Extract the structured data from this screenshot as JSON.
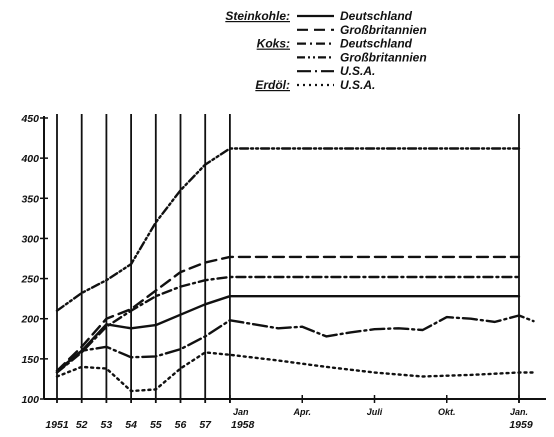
{
  "chart_data": {
    "type": "line",
    "title": "",
    "xlabel": "",
    "ylabel": "",
    "ylim": [
      100,
      450
    ],
    "yticks": [
      100,
      150,
      200,
      250,
      300,
      350,
      400,
      450
    ],
    "ytick_labels": [
      "100",
      "150",
      "200",
      "250",
      "300",
      "350",
      "400",
      "450"
    ],
    "x_label_groups": [
      {
        "labels": [
          "1951",
          "52",
          "53",
          "54",
          "55",
          "56",
          "57"
        ]
      },
      {
        "labels": [
          "Jan",
          "Apr.",
          "Juli",
          "Okt.",
          "Jan."
        ],
        "sublabels": [
          "1958",
          "",
          "",
          "",
          "1959"
        ]
      }
    ],
    "legend": {
      "groups": [
        {
          "label": "Steinkohle:",
          "entries": [
            {
              "name": "Deutschland",
              "series": "s_de"
            },
            {
              "name": "Großbritannien",
              "series": "s_gb"
            }
          ]
        },
        {
          "label": "Koks:",
          "entries": [
            {
              "name": "Deutschland",
              "series": "k_de"
            },
            {
              "name": "Großbritannien",
              "series": "k_gb"
            },
            {
              "name": "U.S.A.",
              "series": "k_usa"
            }
          ]
        },
        {
          "label": "Erdöl:",
          "entries": [
            {
              "name": "U.S.A.",
              "series": "e_usa"
            }
          ]
        }
      ]
    },
    "series": [
      {
        "id": "s_de",
        "name": "Steinkohle: Deutschland",
        "dash": "solid",
        "annual": [
          [
            1951,
            135
          ],
          [
            1952,
            160
          ],
          [
            1953,
            193
          ],
          [
            1954,
            188
          ],
          [
            1955,
            192
          ],
          [
            1956,
            205
          ],
          [
            1957,
            218
          ],
          [
            1958,
            228
          ]
        ],
        "monthly": [
          [
            0,
            228
          ],
          [
            3,
            228
          ],
          [
            6,
            228
          ],
          [
            9,
            228
          ],
          [
            12,
            228
          ]
        ]
      },
      {
        "id": "s_gb",
        "name": "Steinkohle: Großbritannien",
        "dash": "dash",
        "annual": [
          [
            1951,
            135
          ],
          [
            1952,
            165
          ],
          [
            1953,
            200
          ],
          [
            1954,
            212
          ],
          [
            1955,
            235
          ],
          [
            1956,
            258
          ],
          [
            1957,
            270
          ],
          [
            1958,
            277
          ]
        ],
        "monthly": [
          [
            0,
            277
          ],
          [
            3,
            277
          ],
          [
            6,
            277
          ],
          [
            9,
            277
          ],
          [
            12,
            277
          ]
        ]
      },
      {
        "id": "k_de",
        "name": "Koks: Deutschland",
        "dash": "dashdot",
        "annual": [
          [
            1951,
            133
          ],
          [
            1952,
            158
          ],
          [
            1953,
            190
          ],
          [
            1954,
            210
          ],
          [
            1955,
            228
          ],
          [
            1956,
            240
          ],
          [
            1957,
            248
          ],
          [
            1958,
            252
          ]
        ],
        "monthly": [
          [
            0,
            252
          ],
          [
            3,
            252
          ],
          [
            6,
            252
          ],
          [
            9,
            252
          ],
          [
            12,
            252
          ]
        ]
      },
      {
        "id": "k_gb",
        "name": "Koks: Großbritannien",
        "dash": "dashdotdot",
        "annual": [
          [
            1951,
            210
          ],
          [
            1952,
            232
          ],
          [
            1953,
            248
          ],
          [
            1954,
            268
          ],
          [
            1955,
            320
          ],
          [
            1956,
            360
          ],
          [
            1957,
            392
          ],
          [
            1958,
            412
          ]
        ],
        "monthly": [
          [
            0,
            412
          ],
          [
            3,
            412
          ],
          [
            6,
            412
          ],
          [
            9,
            412
          ],
          [
            12,
            412
          ]
        ]
      },
      {
        "id": "k_usa",
        "name": "Koks: U.S.A.",
        "dash": "longdashdot",
        "annual": [
          [
            1951,
            133
          ],
          [
            1952,
            160
          ],
          [
            1953,
            165
          ],
          [
            1954,
            152
          ],
          [
            1955,
            153
          ],
          [
            1956,
            162
          ],
          [
            1957,
            178
          ],
          [
            1958,
            198
          ]
        ],
        "monthly": [
          [
            0,
            198
          ],
          [
            1,
            193
          ],
          [
            2,
            188
          ],
          [
            3,
            190
          ],
          [
            4,
            178
          ],
          [
            5,
            183
          ],
          [
            6,
            187
          ],
          [
            7,
            188
          ],
          [
            8,
            186
          ],
          [
            9,
            202
          ],
          [
            10,
            200
          ],
          [
            11,
            196
          ],
          [
            12,
            204
          ],
          [
            12.6,
            197
          ]
        ]
      },
      {
        "id": "e_usa",
        "name": "Erdöl: U.S.A.",
        "dash": "dot",
        "annual": [
          [
            1951,
            128
          ],
          [
            1952,
            140
          ],
          [
            1953,
            138
          ],
          [
            1954,
            110
          ],
          [
            1955,
            112
          ],
          [
            1956,
            138
          ],
          [
            1957,
            158
          ],
          [
            1958,
            155
          ]
        ],
        "monthly": [
          [
            0,
            155
          ],
          [
            2,
            148
          ],
          [
            4,
            140
          ],
          [
            6,
            133
          ],
          [
            8,
            128
          ],
          [
            10,
            130
          ],
          [
            12,
            133
          ],
          [
            12.6,
            133
          ]
        ]
      }
    ]
  }
}
